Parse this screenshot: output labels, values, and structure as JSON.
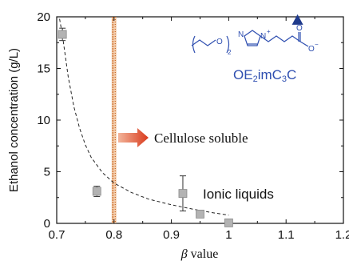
{
  "chart_data": {
    "type": "scatter",
    "title": "",
    "xlabel_symbol": "β",
    "xlabel_suffix": " value",
    "ylabel": "Ethanol concentration (g/L)",
    "xlim": [
      0.7,
      1.2
    ],
    "ylim": [
      0,
      20
    ],
    "x_ticks": [
      "0.7",
      "0.8",
      "0.9",
      "1",
      "1.1",
      "1.2"
    ],
    "y_ticks": [
      "0",
      "5",
      "10",
      "15",
      "20"
    ],
    "grid": false,
    "series": [
      {
        "marker": "square",
        "color": "#b3b3b3",
        "points": [
          {
            "x": 0.71,
            "y": 18.3,
            "err": 0.6
          },
          {
            "x": 0.77,
            "y": 3.1,
            "err": 0.5
          },
          {
            "x": 0.92,
            "y": 2.9,
            "err": 1.7
          },
          {
            "x": 0.95,
            "y": 0.9,
            "err": 0
          },
          {
            "x": 1.0,
            "y": 0.05,
            "err": 0
          }
        ]
      },
      {
        "marker": "triangle",
        "color": "#1f3a8c",
        "points": [
          {
            "x": 1.12,
            "y": 19.7
          }
        ]
      }
    ],
    "fit_curve": {
      "style": "dashed",
      "points": [
        [
          0.705,
          19.8
        ],
        [
          0.71,
          18.2
        ],
        [
          0.72,
          14.2
        ],
        [
          0.73,
          11.3
        ],
        [
          0.74,
          9.2
        ],
        [
          0.75,
          7.6
        ],
        [
          0.76,
          6.4
        ],
        [
          0.78,
          4.9
        ],
        [
          0.8,
          3.9
        ],
        [
          0.83,
          3.0
        ],
        [
          0.86,
          2.35
        ],
        [
          0.9,
          1.8
        ],
        [
          0.94,
          1.35
        ],
        [
          0.97,
          1.05
        ],
        [
          1.0,
          0.8
        ]
      ]
    },
    "threshold_line": {
      "x": 0.8,
      "color": "#c8641e"
    },
    "annotations": {
      "cellulose": "Cellulose soluble",
      "ionic": "Ionic liquids",
      "structure_label_parts": [
        "OE",
        "2",
        "imC",
        "3",
        "C"
      ]
    }
  }
}
